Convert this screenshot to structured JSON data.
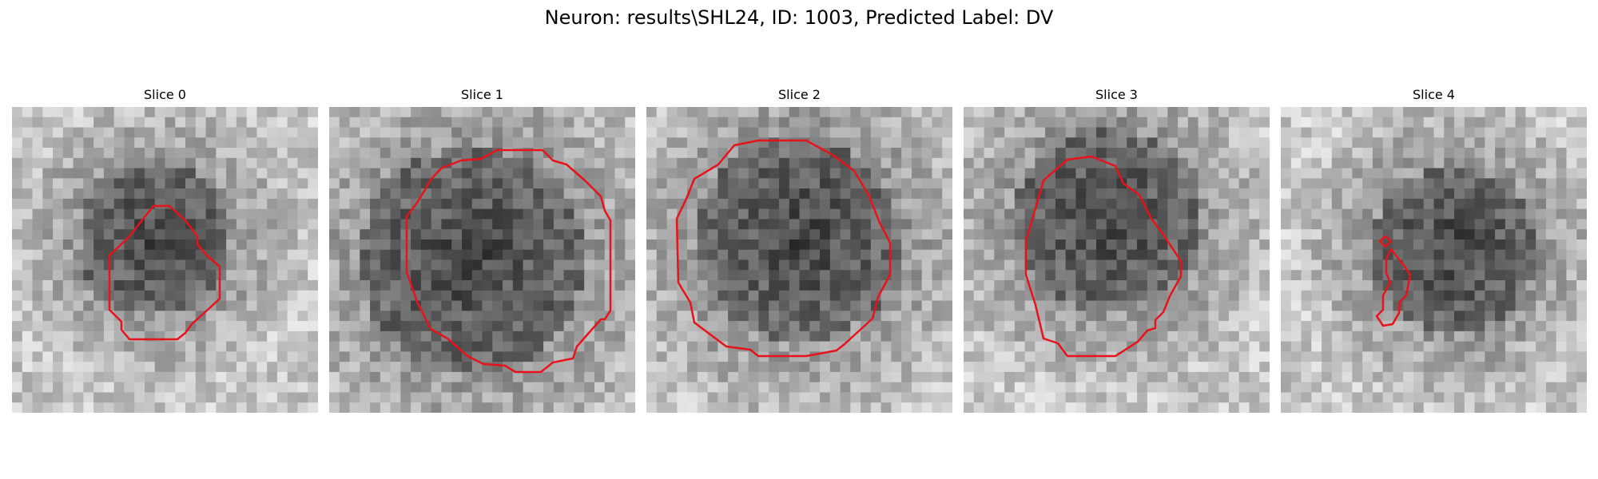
{
  "figure": {
    "title": "Neuron: results\\SHL24, ID: 1003, Predicted Label: DV"
  },
  "panels": [
    {
      "title": "Slice 0",
      "dark_center": true
    },
    {
      "title": "Slice 1",
      "dark_center": true
    },
    {
      "title": "Slice 2",
      "dark_center": true
    },
    {
      "title": "Slice 3",
      "dark_center": true
    },
    {
      "title": "Slice 4",
      "dark_center": true
    }
  ],
  "colors": {
    "contour": "#e8131a",
    "background": "#ffffff"
  }
}
